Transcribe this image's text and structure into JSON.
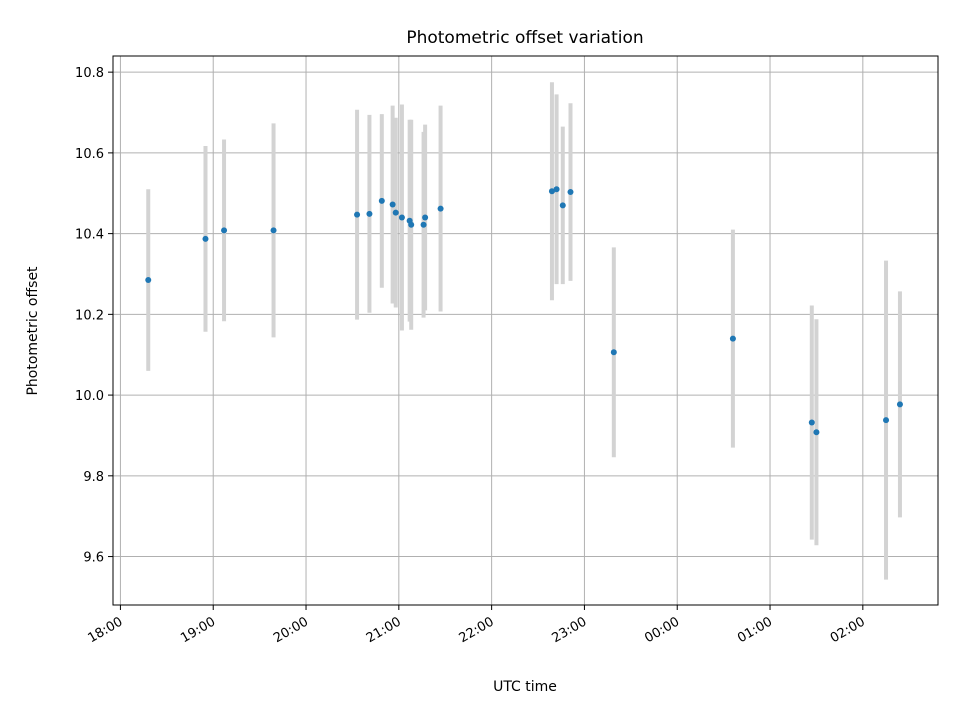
{
  "chart_data": {
    "type": "scatter",
    "title": "Photometric offset variation",
    "xlabel": "UTC time",
    "ylabel": "Photometric offset",
    "x_ticks": [
      "18:00",
      "19:00",
      "20:00",
      "21:00",
      "22:00",
      "23:00",
      "00:00",
      "01:00",
      "02:00"
    ],
    "x_tick_hours": [
      18,
      19,
      20,
      21,
      22,
      23,
      24,
      25,
      26
    ],
    "xlim_hours": [
      17.92,
      26.81
    ],
    "y_ticks": [
      "9.6",
      "9.8",
      "10.0",
      "10.2",
      "10.4",
      "10.6",
      "10.8"
    ],
    "y_tick_values": [
      9.6,
      9.8,
      10.0,
      10.2,
      10.4,
      10.6,
      10.8
    ],
    "ylim": [
      9.48,
      10.84
    ],
    "grid": true,
    "point_color": "#1f77b4",
    "errorbar_color": "#d3d3d3",
    "points": [
      {
        "time": "18:18",
        "y": 10.285,
        "err": 0.225
      },
      {
        "time": "18:55",
        "y": 10.387,
        "err": 0.23
      },
      {
        "time": "19:07",
        "y": 10.408,
        "err": 0.225
      },
      {
        "time": "19:39",
        "y": 10.408,
        "err": 0.265
      },
      {
        "time": "20:33",
        "y": 10.447,
        "err": 0.26
      },
      {
        "time": "20:41",
        "y": 10.449,
        "err": 0.245
      },
      {
        "time": "20:49",
        "y": 10.481,
        "err": 0.215
      },
      {
        "time": "20:56",
        "y": 10.472,
        "err": 0.245
      },
      {
        "time": "20:58",
        "y": 10.452,
        "err": 0.235
      },
      {
        "time": "21:02",
        "y": 10.44,
        "err": 0.28
      },
      {
        "time": "21:07",
        "y": 10.432,
        "err": 0.25
      },
      {
        "time": "21:08",
        "y": 10.422,
        "err": 0.26
      },
      {
        "time": "21:16",
        "y": 10.422,
        "err": 0.23
      },
      {
        "time": "21:17",
        "y": 10.44,
        "err": 0.23
      },
      {
        "time": "21:27",
        "y": 10.462,
        "err": 0.255
      },
      {
        "time": "22:39",
        "y": 10.505,
        "err": 0.27
      },
      {
        "time": "22:42",
        "y": 10.51,
        "err": 0.235
      },
      {
        "time": "22:46",
        "y": 10.47,
        "err": 0.195
      },
      {
        "time": "22:51",
        "y": 10.503,
        "err": 0.22
      },
      {
        "time": "23:19",
        "y": 10.106,
        "err": 0.26
      },
      {
        "time": "00:36",
        "y": 10.14,
        "err": 0.27
      },
      {
        "time": "01:27",
        "y": 9.932,
        "err": 0.29
      },
      {
        "time": "01:30",
        "y": 9.908,
        "err": 0.28
      },
      {
        "time": "02:15",
        "y": 9.938,
        "err": 0.395
      },
      {
        "time": "02:24",
        "y": 9.977,
        "err": 0.28
      }
    ]
  }
}
